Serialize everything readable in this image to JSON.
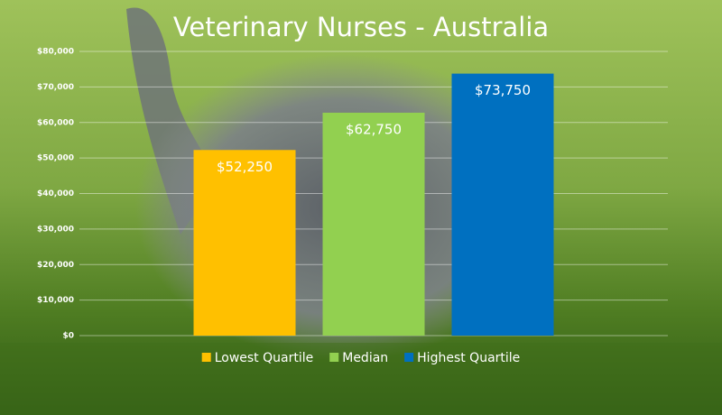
{
  "chart_data": {
    "type": "bar",
    "title": "Veterinary Nurses - Australia",
    "categories": [
      null
    ],
    "series": [
      {
        "name": "Lowest Quartile",
        "color": "#ffc000",
        "values": [
          52250
        ],
        "value_labels": [
          "$52,250"
        ]
      },
      {
        "name": "Median",
        "color": "#92d050",
        "values": [
          62750
        ],
        "value_labels": [
          "$62,750"
        ]
      },
      {
        "name": "Highest Quartile",
        "color": "#0070c0",
        "values": [
          73750
        ],
        "value_labels": [
          "$73,750"
        ]
      }
    ],
    "ylim": [
      0,
      80000
    ],
    "yticks": [
      {
        "value": 0,
        "label": "$0"
      },
      {
        "value": 10000,
        "label": "$10,000"
      },
      {
        "value": 20000,
        "label": "$20,000"
      },
      {
        "value": 30000,
        "label": "$30,000"
      },
      {
        "value": 40000,
        "label": "$40,000"
      },
      {
        "value": 50000,
        "label": "$50,000"
      },
      {
        "value": 60000,
        "label": "$60,000"
      },
      {
        "value": 70000,
        "label": "$70,000"
      },
      {
        "value": 80000,
        "label": "$80,000"
      }
    ],
    "grid": true,
    "legend": "bottom"
  }
}
